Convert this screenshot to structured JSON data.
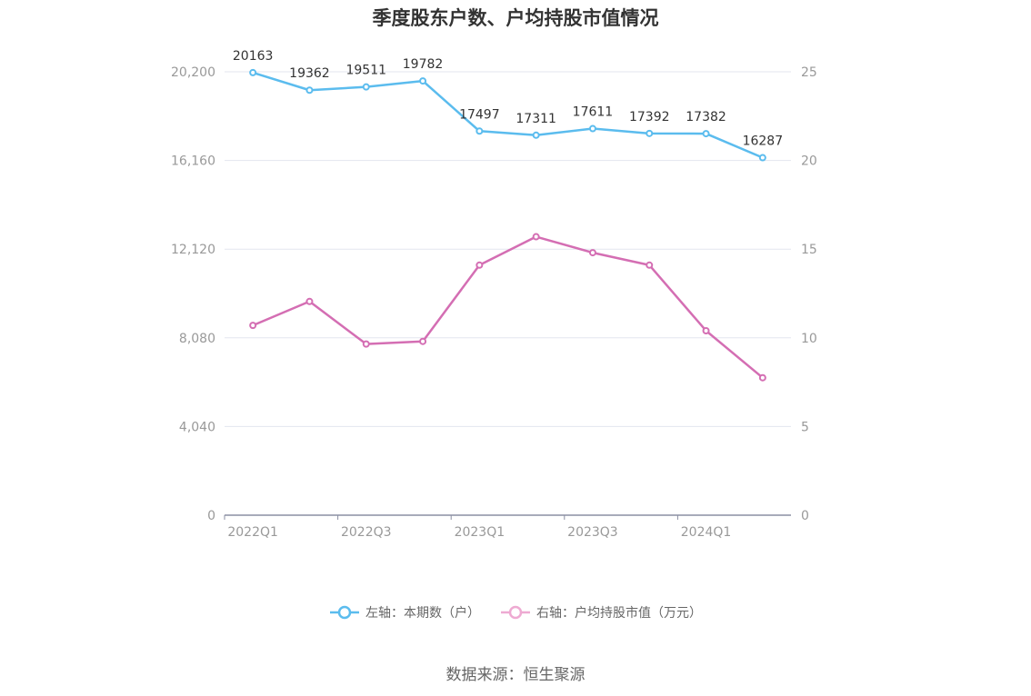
{
  "title": "季度股东户数、户均持股市值情况",
  "source": "数据来源：恒生聚源",
  "colors": {
    "left_series": "#5bbcee",
    "right_series": "#d46eb3",
    "right_series_legend": "#eeaad2",
    "grid": "#e3e6ef",
    "axis": "#8b8fa3"
  },
  "legend": [
    {
      "label": "左轴：本期数（户）"
    },
    {
      "label": "右轴：户均持股市值（万元）"
    }
  ],
  "chart_data": {
    "type": "line",
    "title": "季度股东户数、户均持股市值情况",
    "x": [
      "2022Q1",
      "2022Q2",
      "2022Q3",
      "2022Q4",
      "2023Q1",
      "2023Q2",
      "2023Q3",
      "2023Q4",
      "2024Q1",
      "2024Q2"
    ],
    "x_tick_labels": [
      "2022Q1",
      "2022Q3",
      "2023Q1",
      "2023Q3",
      "2024Q1"
    ],
    "left_axis": {
      "range": [
        0,
        20200
      ],
      "ticks": [
        "0",
        "4,040",
        "8,080",
        "12,120",
        "16,160",
        "20,200"
      ]
    },
    "right_axis": {
      "range": [
        0,
        25
      ],
      "ticks": [
        "0",
        "5",
        "10",
        "15",
        "20",
        "25"
      ]
    },
    "series": [
      {
        "name": "左轴：本期数（户）",
        "axis": "left",
        "values": [
          20163,
          19362,
          19511,
          19782,
          17497,
          17311,
          17611,
          17392,
          17382,
          16287
        ],
        "labels": [
          "20163",
          "19362",
          "19511",
          "19782",
          "17497",
          "17311",
          "17611",
          "17392",
          "17382",
          "16287"
        ]
      },
      {
        "name": "右轴：户均持股市值（万元）",
        "axis": "right",
        "values": [
          10.7,
          12.05,
          9.65,
          9.8,
          14.1,
          15.7,
          14.8,
          14.1,
          10.4,
          7.75
        ]
      }
    ],
    "grid": true,
    "legend_position": "bottom"
  }
}
